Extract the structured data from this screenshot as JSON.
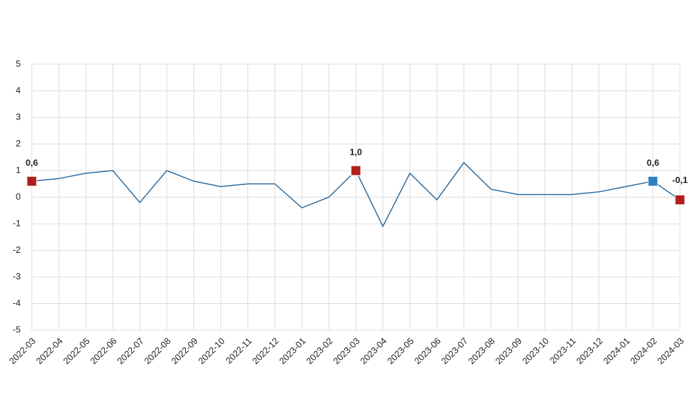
{
  "chart_data": {
    "type": "line",
    "categories": [
      "2022-03",
      "2022-04",
      "2022-05",
      "2022-06",
      "2022-07",
      "2022-08",
      "2022-09",
      "2022-10",
      "2022-11",
      "2022-12",
      "2023-01",
      "2023-02",
      "2023-03",
      "2023-04",
      "2023-05",
      "2023-06",
      "2023-07",
      "2023-08",
      "2023-09",
      "2023-10",
      "2023-11",
      "2023-12",
      "2024-01",
      "2024-02",
      "2024-03"
    ],
    "series": [
      {
        "color": "#2b6a9e",
        "values": [
          0.6,
          0.7,
          0.9,
          1.0,
          -0.2,
          1.0,
          0.6,
          0.4,
          0.5,
          0.5,
          -0.4,
          0.0,
          1.0,
          -1.1,
          0.9,
          -0.1,
          1.3,
          0.3,
          0.1,
          0.1,
          0.1,
          0.2,
          0.4,
          0.6,
          -0.1
        ],
        "value_labels": [
          "0,6",
          null,
          null,
          null,
          null,
          null,
          null,
          null,
          null,
          null,
          null,
          null,
          "1,0",
          null,
          null,
          null,
          null,
          null,
          null,
          null,
          null,
          null,
          null,
          "0,6",
          "-0,1"
        ],
        "marker_colors": [
          "#b01e1e",
          null,
          null,
          null,
          null,
          null,
          null,
          null,
          null,
          null,
          null,
          null,
          "#b01e1e",
          null,
          null,
          null,
          null,
          null,
          null,
          null,
          null,
          null,
          null,
          "#2f7fc1",
          "#b01e1e"
        ]
      }
    ],
    "ylim": [
      -5,
      5
    ],
    "yticks": [
      -5,
      -4,
      -3,
      -2,
      -1,
      0,
      1,
      2,
      3,
      4,
      5
    ],
    "grid": true
  }
}
